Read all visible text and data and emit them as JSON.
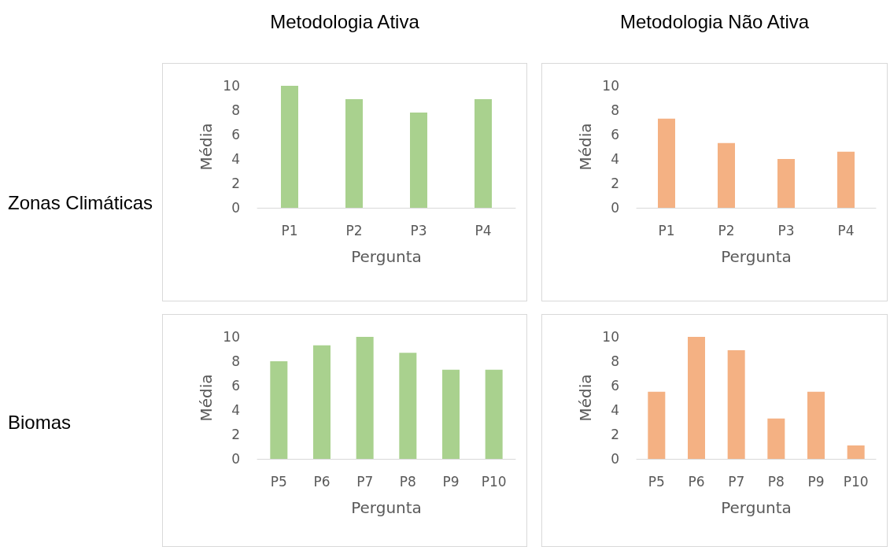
{
  "chart_data": [
    {
      "type": "bar",
      "title": "Metodologia Ativa",
      "annotations": [
        "Zonas Climáticas"
      ],
      "xlabel": "Pergunta",
      "ylabel": "Média",
      "categories": [
        "P1",
        "P2",
        "P3",
        "P4"
      ],
      "values": [
        10,
        8.9,
        7.8,
        8.9
      ],
      "color": "#a9d18e",
      "ylim": [
        0,
        10
      ],
      "yticks": [
        0,
        2,
        4,
        6,
        8,
        10
      ],
      "grid": false
    },
    {
      "type": "bar",
      "title": "Metodologia Não Ativa",
      "xlabel": "Pergunta",
      "ylabel": "Média",
      "categories": [
        "P1",
        "P2",
        "P3",
        "P4"
      ],
      "values": [
        7.3,
        5.3,
        4.0,
        4.6
      ],
      "color": "#f4b183",
      "ylim": [
        0,
        10
      ],
      "yticks": [
        0,
        2,
        4,
        6,
        8,
        10
      ],
      "grid": false
    },
    {
      "type": "bar",
      "annotations": [
        "Biomas"
      ],
      "xlabel": "Pergunta",
      "ylabel": "Média",
      "categories": [
        "P5",
        "P6",
        "P7",
        "P8",
        "P9",
        "P10"
      ],
      "values": [
        8.0,
        9.3,
        10,
        8.7,
        7.3,
        7.3
      ],
      "color": "#a9d18e",
      "ylim": [
        0,
        10
      ],
      "yticks": [
        0,
        2,
        4,
        6,
        8,
        10
      ],
      "grid": false
    },
    {
      "type": "bar",
      "xlabel": "Pergunta",
      "ylabel": "Média",
      "categories": [
        "P5",
        "P6",
        "P7",
        "P8",
        "P9",
        "P10"
      ],
      "values": [
        5.5,
        10,
        8.9,
        3.3,
        5.5,
        1.1
      ],
      "color": "#f4b183",
      "ylim": [
        0,
        10
      ],
      "yticks": [
        0,
        2,
        4,
        6,
        8,
        10
      ],
      "grid": false
    }
  ]
}
